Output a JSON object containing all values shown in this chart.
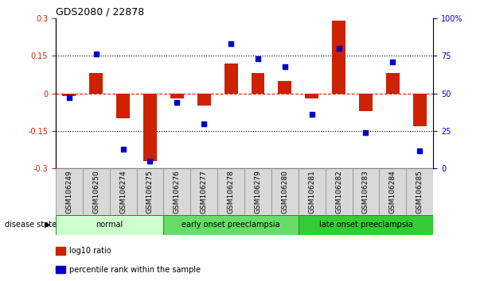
{
  "title": "GDS2080 / 22878",
  "samples": [
    "GSM106249",
    "GSM106250",
    "GSM106274",
    "GSM106275",
    "GSM106276",
    "GSM106277",
    "GSM106278",
    "GSM106279",
    "GSM106280",
    "GSM106281",
    "GSM106282",
    "GSM106283",
    "GSM106284",
    "GSM106285"
  ],
  "log10_ratio": [
    -0.01,
    0.08,
    -0.1,
    -0.27,
    -0.02,
    -0.05,
    0.12,
    0.08,
    0.05,
    -0.02,
    0.29,
    -0.07,
    0.08,
    -0.13
  ],
  "percentile_rank": [
    47,
    76,
    13,
    5,
    44,
    30,
    83,
    73,
    68,
    36,
    80,
    24,
    71,
    12
  ],
  "groups": [
    {
      "label": "normal",
      "start": 0,
      "end": 4,
      "color": "#ccffcc"
    },
    {
      "label": "early onset preeclampsia",
      "start": 4,
      "end": 9,
      "color": "#66dd66"
    },
    {
      "label": "late onset preeclampsia",
      "start": 9,
      "end": 14,
      "color": "#33cc33"
    }
  ],
  "bar_color": "#cc2200",
  "scatter_color": "#0000cc",
  "ylim_left": [
    -0.3,
    0.3
  ],
  "ylim_right": [
    0,
    100
  ],
  "yticks_left": [
    -0.3,
    -0.15,
    0,
    0.15,
    0.3
  ],
  "yticks_right": [
    0,
    25,
    50,
    75,
    100
  ],
  "ytick_labels_right": [
    "0",
    "25",
    "50",
    "75",
    "100%"
  ],
  "dotted_lines": [
    -0.15,
    0.15
  ],
  "legend_labels": [
    "log10 ratio",
    "percentile rank within the sample"
  ],
  "bar_width": 0.5,
  "label_cell_color": "#d8d8d8",
  "label_cell_edge": "#888888",
  "group_edge_color": "#228822"
}
